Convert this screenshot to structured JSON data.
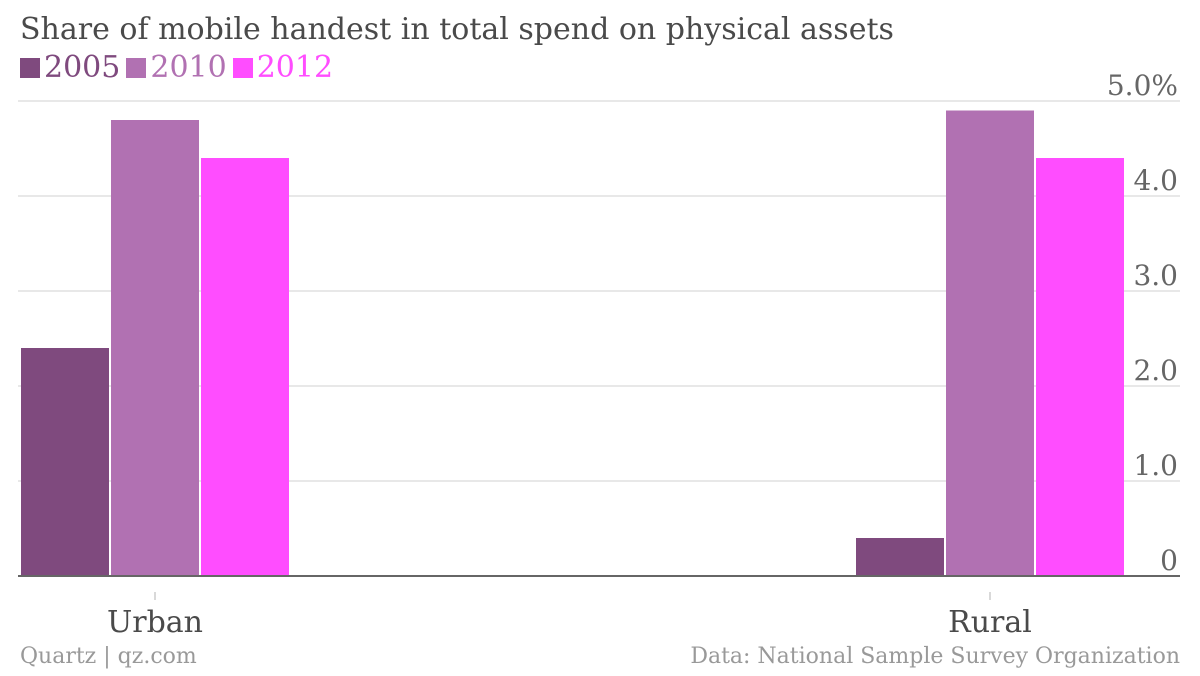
{
  "chart_data": {
    "type": "bar",
    "title": "Share of mobile handest in total spend on physical assets",
    "categories": [
      "Urban",
      "Rural"
    ],
    "series": [
      {
        "name": "2005",
        "values": [
          2.4,
          0.4
        ],
        "color": "#7f4a7e"
      },
      {
        "name": "2010",
        "values": [
          4.8,
          4.9
        ],
        "color": "#b171b2"
      },
      {
        "name": "2012",
        "values": [
          4.4,
          4.4
        ],
        "color": "#ff4dff"
      }
    ],
    "ylim": [
      0,
      5.0
    ],
    "yticks": [
      {
        "value": 0,
        "label": "0"
      },
      {
        "value": 1,
        "label": "1.0"
      },
      {
        "value": 2,
        "label": "2.0"
      },
      {
        "value": 3,
        "label": "3.0"
      },
      {
        "value": 4,
        "label": "4.0"
      },
      {
        "value": 5,
        "label": "5.0%"
      }
    ],
    "grid": true,
    "legend_position": "top-left",
    "y_axis_side": "right"
  },
  "footer": {
    "credit": "Quartz | qz.com",
    "source": "Data: National Sample Survey Organization"
  }
}
